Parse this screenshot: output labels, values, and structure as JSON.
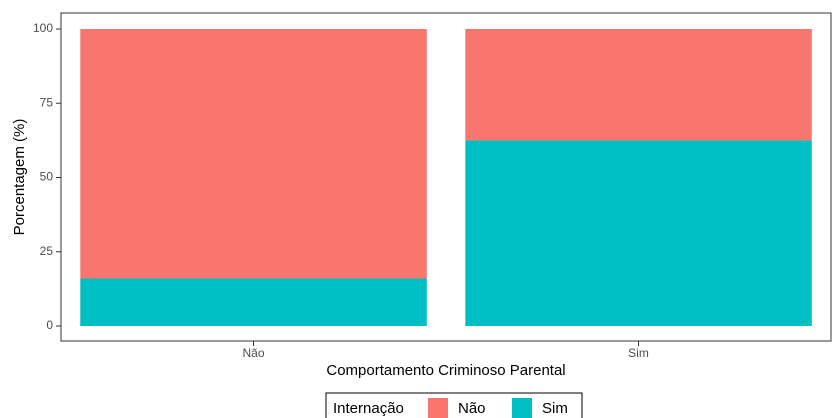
{
  "chart_data": {
    "type": "bar",
    "stacked": true,
    "categories": [
      "Não",
      "Sim"
    ],
    "series": [
      {
        "name": "Sim",
        "values": [
          16,
          62.5
        ],
        "color": "#00BFC4"
      },
      {
        "name": "Não",
        "values": [
          84,
          37.5
        ],
        "color": "#F8766D"
      }
    ],
    "xlabel": "Comportamento Criminoso Parental",
    "ylabel": "Porcentagem (%)",
    "ylim": [
      0,
      100
    ],
    "yticks": [
      0,
      25,
      50,
      75,
      100
    ],
    "grid": false,
    "legend": {
      "title": "Internação",
      "placement": "bottom",
      "entries": [
        "Não",
        "Sim"
      ]
    }
  }
}
